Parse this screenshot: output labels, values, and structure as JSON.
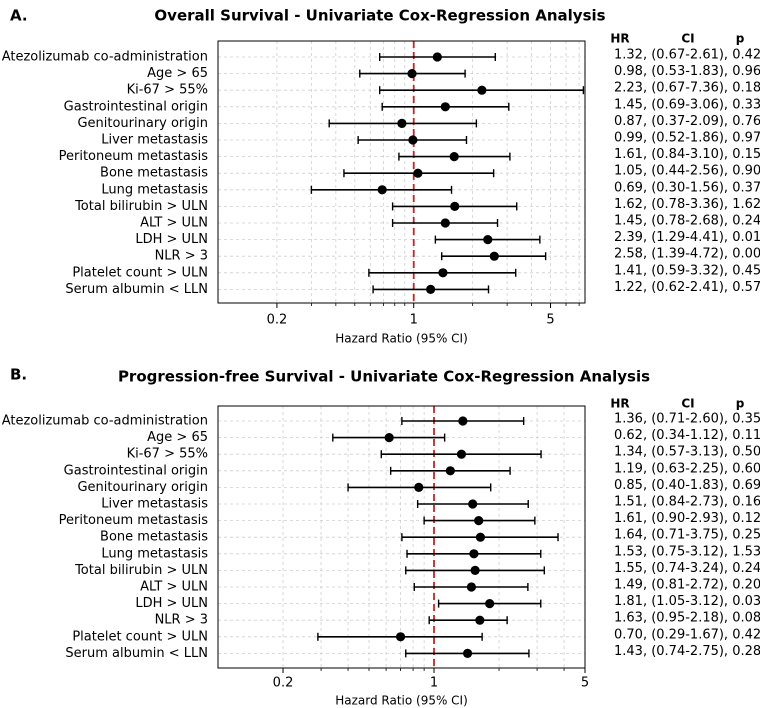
{
  "chart_data": [
    {
      "type": "forest",
      "panel_label": "A.",
      "title": "Overall Survival - Univariate Cox-Regression Analysis",
      "xlabel": "Hazard Ratio (95% CI)",
      "xscale": "log",
      "xlim": [
        0.1,
        7.5
      ],
      "xticks": [
        0.2,
        1,
        5
      ],
      "xtick_labels": [
        "0.2",
        "1",
        "5"
      ],
      "reference_line": 1,
      "reference_color": "#cc2222",
      "table_headers": [
        "HR",
        "CI",
        "p"
      ],
      "rows": [
        {
          "label": "Atezolizumab co-administration",
          "hr": 1.32,
          "lo": 0.67,
          "hi": 2.61,
          "text": "1.32, (0.67-2.61), 0.42"
        },
        {
          "label": "Age > 65",
          "hr": 0.98,
          "lo": 0.53,
          "hi": 1.83,
          "text": "0.98, (0.53-1.83), 0.96"
        },
        {
          "label": "Ki-67 > 55%",
          "hr": 2.23,
          "lo": 0.67,
          "hi": 7.36,
          "text": "2.23, (0.67-7.36), 0.18"
        },
        {
          "label": "Gastrointestinal origin",
          "hr": 1.45,
          "lo": 0.69,
          "hi": 3.06,
          "text": "1.45, (0.69-3.06), 0.33"
        },
        {
          "label": "Genitourinary origin",
          "hr": 0.87,
          "lo": 0.37,
          "hi": 2.09,
          "text": "0.87, (0.37-2.09), 0.76"
        },
        {
          "label": "Liver metastasis",
          "hr": 0.99,
          "lo": 0.52,
          "hi": 1.86,
          "text": "0.99, (0.52-1.86), 0.97"
        },
        {
          "label": "Peritoneum metastasis",
          "hr": 1.61,
          "lo": 0.84,
          "hi": 3.1,
          "text": "1.61, (0.84-3.10), 0.15"
        },
        {
          "label": "Bone metastasis",
          "hr": 1.05,
          "lo": 0.44,
          "hi": 2.56,
          "text": "1.05, (0.44-2.56), 0.90"
        },
        {
          "label": "Lung metastasis",
          "hr": 0.69,
          "lo": 0.3,
          "hi": 1.56,
          "text": "0.69, (0.30-1.56), 0.37"
        },
        {
          "label": "Total bilirubin > ULN",
          "hr": 1.62,
          "lo": 0.78,
          "hi": 3.36,
          "text": "1.62, (0.78-3.36), 1.62"
        },
        {
          "label": "ALT > ULN",
          "hr": 1.45,
          "lo": 0.78,
          "hi": 2.68,
          "text": "1.45, (0.78-2.68), 0.24"
        },
        {
          "label": "LDH > ULN",
          "hr": 2.39,
          "lo": 1.29,
          "hi": 4.41,
          "text": "2.39, (1.29-4.41), 0.01"
        },
        {
          "label": "NLR > 3",
          "hr": 2.58,
          "lo": 1.39,
          "hi": 4.72,
          "text": "2.58, (1.39-4.72), 0.00"
        },
        {
          "label": "Platelet count > ULN",
          "hr": 1.41,
          "lo": 0.59,
          "hi": 3.32,
          "text": "1.41, (0.59-3.32), 0.45"
        },
        {
          "label": "Serum albumin < LLN",
          "hr": 1.22,
          "lo": 0.62,
          "hi": 2.41,
          "text": "1.22, (0.62-2.41), 0.57"
        }
      ]
    },
    {
      "type": "forest",
      "panel_label": "B.",
      "title": "Progression-free Survival - Univariate Cox-Regression Analysis",
      "xlabel": "Hazard Ratio (95% CI)",
      "xscale": "log",
      "xlim": [
        0.1,
        5.0
      ],
      "xticks": [
        0.2,
        1,
        5
      ],
      "xtick_labels": [
        "0.2",
        "1",
        "5"
      ],
      "reference_line": 1,
      "reference_color": "#cc2222",
      "table_headers": [
        "HR",
        "CI",
        "p"
      ],
      "rows": [
        {
          "label": "Atezolizumab co-administration",
          "hr": 1.36,
          "lo": 0.71,
          "hi": 2.6,
          "text": "1.36, (0.71-2.60), 0.35"
        },
        {
          "label": "Age > 65",
          "hr": 0.62,
          "lo": 0.34,
          "hi": 1.12,
          "text": "0.62, (0.34-1.12), 0.11"
        },
        {
          "label": "Ki-67 > 55%",
          "hr": 1.34,
          "lo": 0.57,
          "hi": 3.13,
          "text": "1.34, (0.57-3.13), 0.50"
        },
        {
          "label": "Gastrointestinal origin",
          "hr": 1.19,
          "lo": 0.63,
          "hi": 2.25,
          "text": "1.19, (0.63-2.25), 0.60"
        },
        {
          "label": "Genitourinary origin",
          "hr": 0.85,
          "lo": 0.4,
          "hi": 1.83,
          "text": "0.85, (0.40-1.83), 0.69"
        },
        {
          "label": "Liver metastasis",
          "hr": 1.51,
          "lo": 0.84,
          "hi": 2.73,
          "text": "1.51, (0.84-2.73), 0.16"
        },
        {
          "label": "Peritoneum metastasis",
          "hr": 1.61,
          "lo": 0.9,
          "hi": 2.93,
          "text": "1.61, (0.90-2.93), 0.12"
        },
        {
          "label": "Bone metastasis",
          "hr": 1.64,
          "lo": 0.71,
          "hi": 3.75,
          "text": "1.64, (0.71-3.75), 0.25"
        },
        {
          "label": "Lung metastasis",
          "hr": 1.53,
          "lo": 0.75,
          "hi": 3.12,
          "text": "1.53, (0.75-3.12), 1.53"
        },
        {
          "label": "Total bilirubin > ULN",
          "hr": 1.55,
          "lo": 0.74,
          "hi": 3.24,
          "text": "1.55, (0.74-3.24), 0.24"
        },
        {
          "label": "ALT > ULN",
          "hr": 1.49,
          "lo": 0.81,
          "hi": 2.72,
          "text": "1.49, (0.81-2.72), 0.20"
        },
        {
          "label": "LDH > ULN",
          "hr": 1.81,
          "lo": 1.05,
          "hi": 3.12,
          "text": "1.81, (1.05-3.12), 0.03"
        },
        {
          "label": "NLR > 3",
          "hr": 1.63,
          "lo": 0.95,
          "hi": 2.18,
          "text": "1.63, (0.95-2.18), 0.08"
        },
        {
          "label": "Platelet count > ULN",
          "hr": 0.7,
          "lo": 0.29,
          "hi": 1.67,
          "text": "0.70, (0.29-1.67), 0.42"
        },
        {
          "label": "Serum albumin < LLN",
          "hr": 1.43,
          "lo": 0.74,
          "hi": 2.75,
          "text": "1.43, (0.74-2.75), 0.28"
        }
      ]
    }
  ]
}
